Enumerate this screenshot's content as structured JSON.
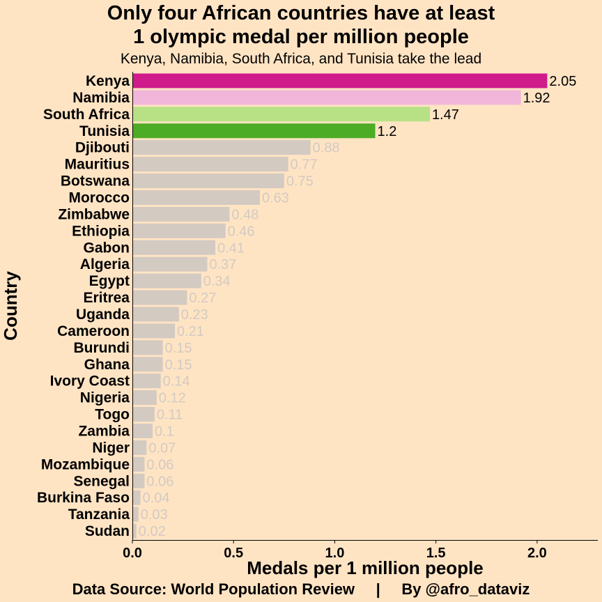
{
  "chart_data": {
    "type": "bar",
    "orientation": "horizontal",
    "title_lines": [
      "Only four African countries have at least",
      "1 olympic medal per million people"
    ],
    "subtitle": "Kenya, Namibia, South Africa, and Tunisia take the lead",
    "xlabel": "Medals per 1 million people",
    "ylabel": "Country",
    "caption": "Data Source: World Population Review     |     By @afro_dataviz",
    "xlim": [
      0,
      2.3
    ],
    "xticks": [
      0.0,
      0.5,
      1.0,
      1.5,
      2.0
    ],
    "xtick_labels": [
      "0.0",
      "0.5",
      "1.0",
      "1.5",
      "2.0"
    ],
    "categories": [
      "Kenya",
      "Namibia",
      "South Africa",
      "Tunisia",
      "Djibouti",
      "Mauritius",
      "Botswana",
      "Morocco",
      "Zimbabwe",
      "Ethiopia",
      "Gabon",
      "Algeria",
      "Egypt",
      "Eritrea",
      "Uganda",
      "Cameroon",
      "Burundi",
      "Ghana",
      "Ivory Coast",
      "Nigeria",
      "Togo",
      "Zambia",
      "Niger",
      "Mozambique",
      "Senegal",
      "Burkina Faso",
      "Tanzania",
      "Sudan"
    ],
    "values": [
      2.05,
      1.92,
      1.47,
      1.2,
      0.88,
      0.77,
      0.75,
      0.63,
      0.48,
      0.46,
      0.41,
      0.37,
      0.34,
      0.27,
      0.23,
      0.21,
      0.15,
      0.15,
      0.14,
      0.12,
      0.11,
      0.1,
      0.07,
      0.06,
      0.06,
      0.04,
      0.03,
      0.02
    ],
    "value_labels": [
      "2.05",
      "1.92",
      "1.47",
      "1.2",
      "0.88",
      "0.77",
      "0.75",
      "0.63",
      "0.48",
      "0.46",
      "0.41",
      "0.37",
      "0.34",
      "0.27",
      "0.23",
      "0.21",
      "0.15",
      "0.15",
      "0.14",
      "0.12",
      "0.11",
      "0.1",
      "0.07",
      "0.06",
      "0.06",
      "0.04",
      "0.03",
      "0.02"
    ],
    "bar_colors": [
      "#D01C8B",
      "#F1B6DA",
      "#B8E186",
      "#4DAC26"
    ],
    "default_bar_color": "#D3CAC2",
    "highlight_label_color": "#000000",
    "default_label_color": "#D3CAC2",
    "grid": false
  }
}
